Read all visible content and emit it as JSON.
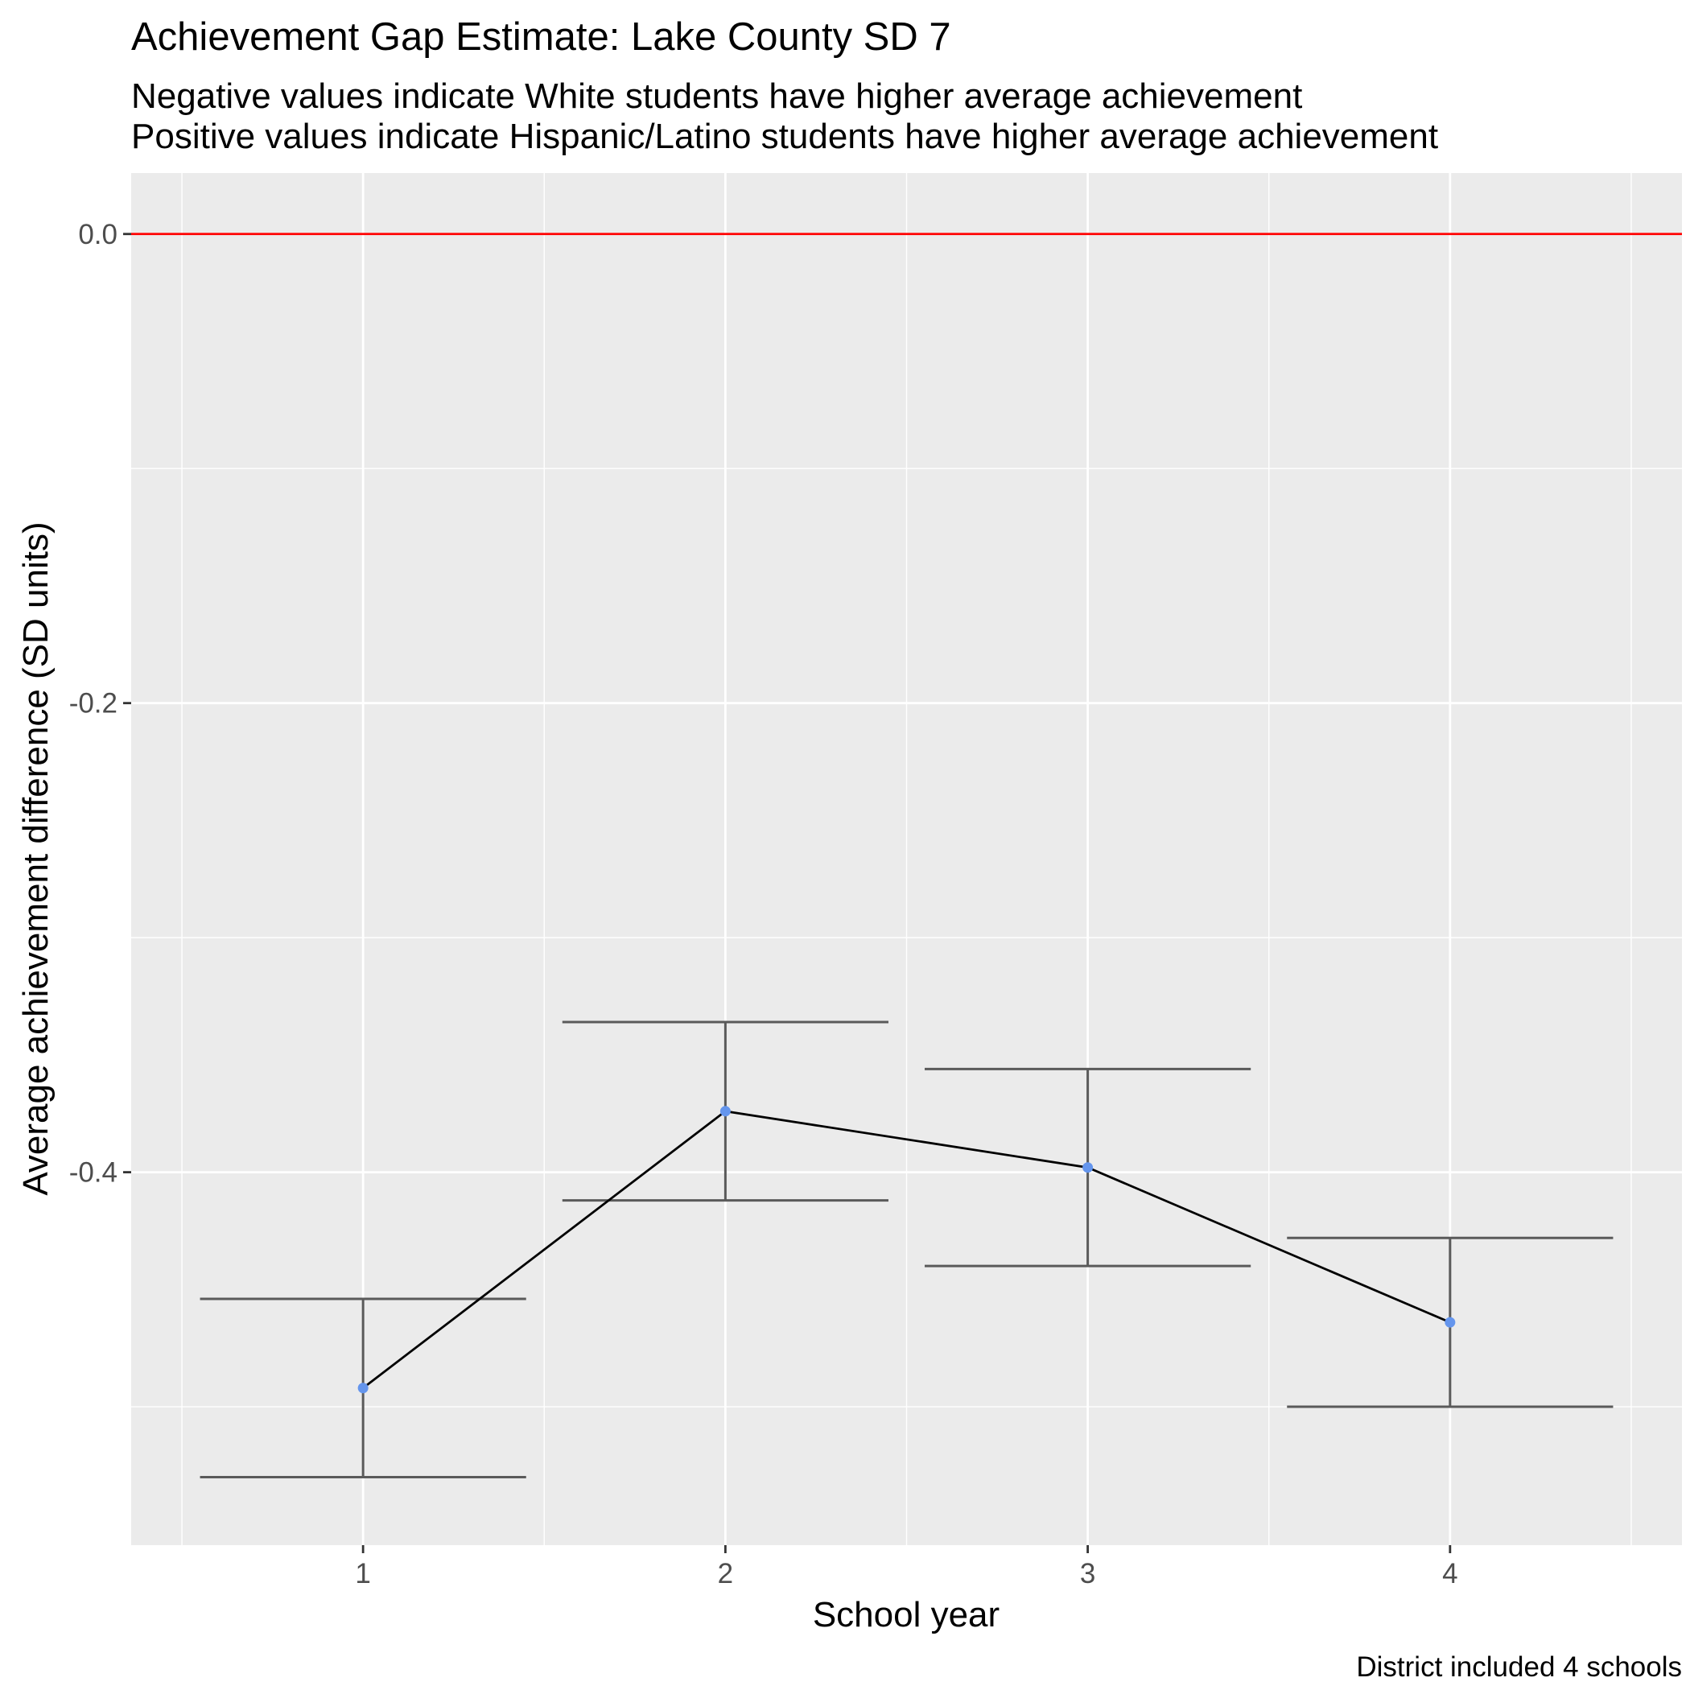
{
  "chart_data": {
    "type": "line",
    "title": "Achievement Gap Estimate: Lake County SD 7",
    "subtitle_lines": [
      "Negative values indicate White students have higher average achievement",
      "Positive values indicate Hispanic/Latino students have higher average achievement"
    ],
    "xlabel": "School year",
    "ylabel": "Average achievement difference (SD units)",
    "caption": "District included 4 schools",
    "x": [
      1,
      2,
      3,
      4
    ],
    "x_tick_labels": [
      "1",
      "2",
      "3",
      "4"
    ],
    "xlim": [
      0.36,
      4.64
    ],
    "y_ticks": [
      0.0,
      -0.2,
      -0.4
    ],
    "y_tick_labels": [
      "0.0",
      "-0.2",
      "-0.4"
    ],
    "y_minor_ticks": [
      -0.1,
      -0.3,
      -0.5
    ],
    "ylim": [
      -0.559,
      0.026
    ],
    "series": [
      {
        "estimate": [
          -0.492,
          -0.374,
          -0.398,
          -0.464
        ],
        "lower": [
          -0.53,
          -0.412,
          -0.44,
          -0.5
        ],
        "upper": [
          -0.454,
          -0.336,
          -0.356,
          -0.428
        ]
      }
    ],
    "reference_line": {
      "y": 0.0,
      "color": "#ff0000"
    },
    "grid": true,
    "colors": {
      "panel_background": "#ebebeb",
      "grid": "#ffffff",
      "line": "#000000",
      "point": "#6495ed",
      "errorbar": "#5a5a5a"
    }
  }
}
